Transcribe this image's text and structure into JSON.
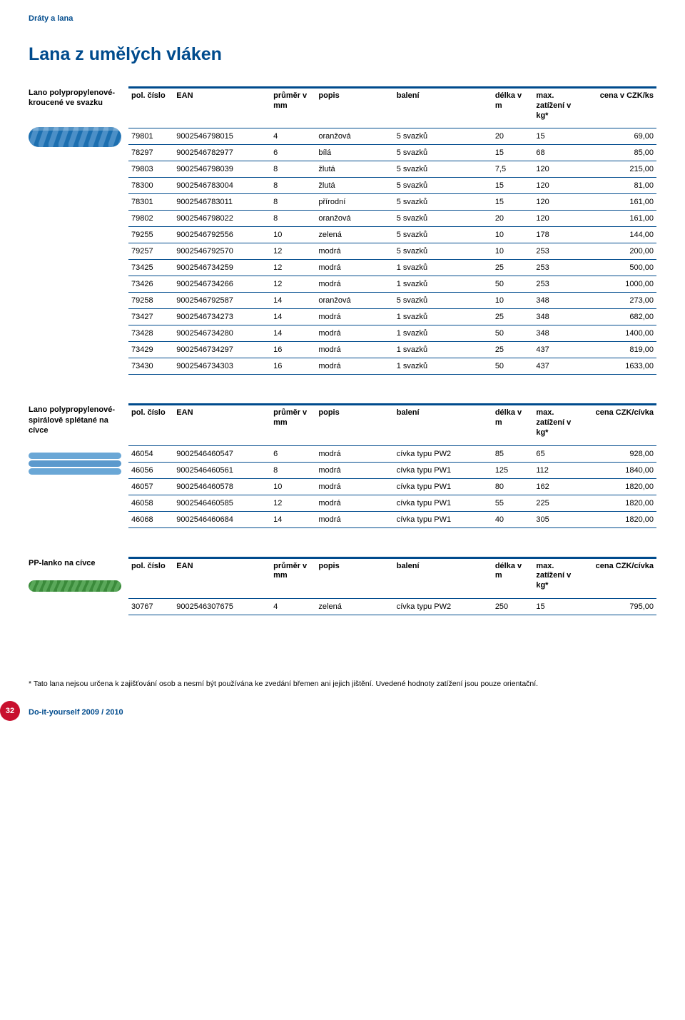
{
  "category": "Dráty a lana",
  "heading": "Lana z umělých vláken",
  "colors": {
    "brand": "#004b8d",
    "badge": "#c8102e",
    "rope_blue": "#1c6fb0",
    "rope_lightblue": "#6aa7d6",
    "rope_green": "#3a8a3a"
  },
  "columns": {
    "pol": "pol. číslo",
    "ean": "EAN",
    "prumer": "průměr v mm",
    "popis": "popis",
    "baleni": "balení",
    "delka": "délka v m",
    "max": "max. zatížení v kg*",
    "cena_ks": "cena v CZK/ks",
    "cena_civka": "cena CZK/cívka"
  },
  "table1": {
    "title": "Lano polypropylenové-kroucené ve svazku",
    "rows": [
      [
        "79801",
        "9002546798015",
        "4",
        "oranžová",
        "5 svazků",
        "20",
        "15",
        "69,00"
      ],
      [
        "78297",
        "9002546782977",
        "6",
        "bílá",
        "5 svazků",
        "15",
        "68",
        "85,00"
      ],
      [
        "79803",
        "9002546798039",
        "8",
        "žlutá",
        "5 svazků",
        "7,5",
        "120",
        "215,00"
      ],
      [
        "78300",
        "9002546783004",
        "8",
        "žlutá",
        "5 svazků",
        "15",
        "120",
        "81,00"
      ],
      [
        "78301",
        "9002546783011",
        "8",
        "přírodní",
        "5 svazků",
        "15",
        "120",
        "161,00"
      ],
      [
        "79802",
        "9002546798022",
        "8",
        "oranžová",
        "5 svazků",
        "20",
        "120",
        "161,00"
      ],
      [
        "79255",
        "9002546792556",
        "10",
        "zelená",
        "5 svazků",
        "10",
        "178",
        "144,00"
      ],
      [
        "79257",
        "9002546792570",
        "12",
        "modrá",
        "5 svazků",
        "10",
        "253",
        "200,00"
      ],
      [
        "73425",
        "9002546734259",
        "12",
        "modrá",
        "1 svazků",
        "25",
        "253",
        "500,00"
      ],
      [
        "73426",
        "9002546734266",
        "12",
        "modrá",
        "1 svazků",
        "50",
        "253",
        "1000,00"
      ],
      [
        "79258",
        "9002546792587",
        "14",
        "oranžová",
        "5 svazků",
        "10",
        "348",
        "273,00"
      ],
      [
        "73427",
        "9002546734273",
        "14",
        "modrá",
        "1 svazků",
        "25",
        "348",
        "682,00"
      ],
      [
        "73428",
        "9002546734280",
        "14",
        "modrá",
        "1 svazků",
        "50",
        "348",
        "1400,00"
      ],
      [
        "73429",
        "9002546734297",
        "16",
        "modrá",
        "1 svazků",
        "25",
        "437",
        "819,00"
      ],
      [
        "73430",
        "9002546734303",
        "16",
        "modrá",
        "1 svazků",
        "50",
        "437",
        "1633,00"
      ]
    ]
  },
  "table2": {
    "title": "Lano polypropylenové-spirálově splétané\nna cívce",
    "rows": [
      [
        "46054",
        "9002546460547",
        "6",
        "modrá",
        "cívka typu PW2",
        "85",
        "65",
        "928,00"
      ],
      [
        "46056",
        "9002546460561",
        "8",
        "modrá",
        "cívka typu PW1",
        "125",
        "112",
        "1840,00"
      ],
      [
        "46057",
        "9002546460578",
        "10",
        "modrá",
        "cívka typu PW1",
        "80",
        "162",
        "1820,00"
      ],
      [
        "46058",
        "9002546460585",
        "12",
        "modrá",
        "cívka typu PW1",
        "55",
        "225",
        "1820,00"
      ],
      [
        "46068",
        "9002546460684",
        "14",
        "modrá",
        "cívka typu PW1",
        "40",
        "305",
        "1820,00"
      ]
    ]
  },
  "table3": {
    "title": "PP-lanko\nna cívce",
    "rows": [
      [
        "30767",
        "9002546307675",
        "4",
        "zelená",
        "cívka typu PW2",
        "250",
        "15",
        "795,00"
      ]
    ]
  },
  "footnote": "* Tato lana nejsou určena k zajišťování osob a nesmí být používána ke zvedání břemen ani jejich jištění. Uvedené hodnoty zatížení jsou pouze orientační.",
  "page_number": "32",
  "footer_text": "Do-it-yourself 2009 / 2010"
}
